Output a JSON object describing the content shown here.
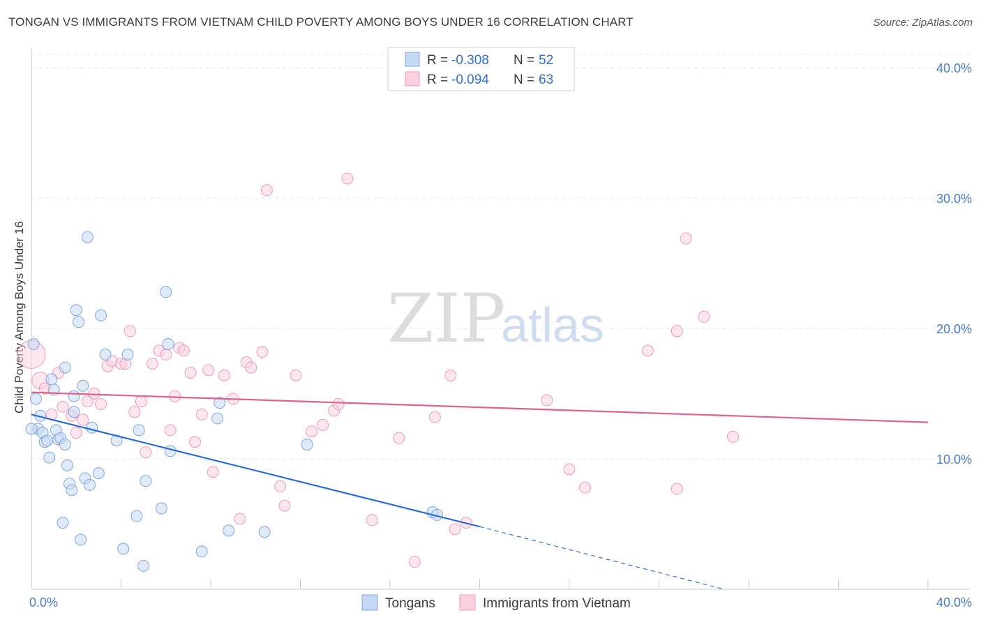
{
  "title": "TONGAN VS IMMIGRANTS FROM VIETNAM CHILD POVERTY AMONG BOYS UNDER 16 CORRELATION CHART",
  "source": "Source: ZipAtlas.com",
  "watermark": {
    "part1": "ZIP",
    "part2": "atlas"
  },
  "colors": {
    "tongans": "#6f9fe0",
    "tongans_line": "#2d6fd0",
    "vietnam": "#f09ab5",
    "vietnam_line": "#e0628e"
  },
  "legend": {
    "r_label": "R = ",
    "n_label": "N = ",
    "tongans": {
      "r": "-0.308",
      "n": "52"
    },
    "vietnam": {
      "r": "-0.094",
      "n": "63"
    }
  },
  "chart_data": {
    "type": "scatter",
    "title": "TONGAN VS IMMIGRANTS FROM VIETNAM CHILD POVERTY AMONG BOYS UNDER 16 CORRELATION CHART",
    "xlabel": "",
    "ylabel": "Child Poverty Among Boys Under 16",
    "xlim": [
      0,
      40
    ],
    "ylim": [
      0,
      40
    ],
    "y_ticks": [
      {
        "value": 10,
        "label": "10.0%"
      },
      {
        "value": 20,
        "label": "20.0%"
      },
      {
        "value": 30,
        "label": "30.0%"
      },
      {
        "value": 40,
        "label": "40.0%"
      }
    ],
    "x_tick_labels": {
      "min": "0.0%",
      "max": "40.0%"
    },
    "series": [
      {
        "name": "Tongans",
        "r": -0.308,
        "n": 52,
        "trend": {
          "x0": 0,
          "y0": 13.4,
          "x1": 20,
          "y1": 4.8,
          "dash_x1": 30.9,
          "dash_y1": 0
        },
        "points": [
          [
            0.1,
            18.8
          ],
          [
            0.2,
            14.6
          ],
          [
            0.3,
            12.3
          ],
          [
            0.4,
            13.3
          ],
          [
            0.5,
            12.0
          ],
          [
            0.6,
            11.3
          ],
          [
            0.7,
            11.4
          ],
          [
            0.8,
            10.1
          ],
          [
            0.9,
            16.1
          ],
          [
            1.0,
            15.3
          ],
          [
            1.1,
            12.2
          ],
          [
            1.2,
            11.5
          ],
          [
            1.3,
            11.6
          ],
          [
            1.4,
            5.1
          ],
          [
            1.5,
            11.1
          ],
          [
            1.5,
            17.0
          ],
          [
            1.6,
            9.5
          ],
          [
            1.7,
            8.1
          ],
          [
            1.8,
            7.6
          ],
          [
            1.9,
            13.6
          ],
          [
            1.9,
            14.8
          ],
          [
            2.0,
            21.4
          ],
          [
            2.1,
            20.5
          ],
          [
            2.2,
            3.8
          ],
          [
            2.3,
            15.6
          ],
          [
            2.4,
            8.5
          ],
          [
            2.5,
            27.0
          ],
          [
            2.6,
            8.0
          ],
          [
            2.7,
            12.4
          ],
          [
            3.0,
            8.9
          ],
          [
            3.1,
            21.0
          ],
          [
            3.3,
            18.0
          ],
          [
            3.8,
            11.4
          ],
          [
            4.1,
            3.1
          ],
          [
            4.3,
            18.0
          ],
          [
            4.7,
            5.6
          ],
          [
            4.8,
            12.2
          ],
          [
            5.0,
            1.8
          ],
          [
            5.1,
            8.3
          ],
          [
            5.8,
            6.2
          ],
          [
            6.0,
            22.8
          ],
          [
            6.1,
            18.8
          ],
          [
            6.2,
            10.6
          ],
          [
            7.6,
            2.9
          ],
          [
            8.3,
            13.1
          ],
          [
            8.4,
            14.3
          ],
          [
            8.8,
            4.5
          ],
          [
            10.4,
            4.4
          ],
          [
            12.3,
            11.1
          ],
          [
            17.9,
            5.9
          ],
          [
            18.1,
            5.7
          ],
          [
            0.0,
            12.3
          ]
        ]
      },
      {
        "name": "Immigrants from Vietnam",
        "r": -0.094,
        "n": 63,
        "trend": {
          "x0": 0,
          "y0": 15.1,
          "x1": 40,
          "y1": 12.8
        },
        "points": [
          [
            0.0,
            18.0
          ],
          [
            0.4,
            16.0
          ],
          [
            0.6,
            15.4
          ],
          [
            0.9,
            13.4
          ],
          [
            1.2,
            16.6
          ],
          [
            1.4,
            14.0
          ],
          [
            1.8,
            13.3
          ],
          [
            2.0,
            12.0
          ],
          [
            2.3,
            13.0
          ],
          [
            2.5,
            14.4
          ],
          [
            2.8,
            15.0
          ],
          [
            3.1,
            14.2
          ],
          [
            3.4,
            17.1
          ],
          [
            3.6,
            17.5
          ],
          [
            4.0,
            17.3
          ],
          [
            4.2,
            17.3
          ],
          [
            4.4,
            19.8
          ],
          [
            4.6,
            13.6
          ],
          [
            4.9,
            14.4
          ],
          [
            5.1,
            10.5
          ],
          [
            5.4,
            17.3
          ],
          [
            5.7,
            18.3
          ],
          [
            6.0,
            18.0
          ],
          [
            6.2,
            12.2
          ],
          [
            6.4,
            14.8
          ],
          [
            6.6,
            18.5
          ],
          [
            6.8,
            18.3
          ],
          [
            7.1,
            16.6
          ],
          [
            7.3,
            11.3
          ],
          [
            7.6,
            13.4
          ],
          [
            7.9,
            16.8
          ],
          [
            8.1,
            9.0
          ],
          [
            8.6,
            16.4
          ],
          [
            9.0,
            14.6
          ],
          [
            9.3,
            5.4
          ],
          [
            9.6,
            17.4
          ],
          [
            9.8,
            17.0
          ],
          [
            10.3,
            18.2
          ],
          [
            10.5,
            30.6
          ],
          [
            11.1,
            7.9
          ],
          [
            11.3,
            6.4
          ],
          [
            11.8,
            16.4
          ],
          [
            12.5,
            12.1
          ],
          [
            13.0,
            12.6
          ],
          [
            13.5,
            13.7
          ],
          [
            13.7,
            14.2
          ],
          [
            14.1,
            31.5
          ],
          [
            15.2,
            5.3
          ],
          [
            16.4,
            11.6
          ],
          [
            17.1,
            2.1
          ],
          [
            18.0,
            13.2
          ],
          [
            18.7,
            16.4
          ],
          [
            18.9,
            4.6
          ],
          [
            19.4,
            5.1
          ],
          [
            23.0,
            14.5
          ],
          [
            24.0,
            9.2
          ],
          [
            24.7,
            7.8
          ],
          [
            27.5,
            18.3
          ],
          [
            28.8,
            19.8
          ],
          [
            28.8,
            7.7
          ],
          [
            29.2,
            26.9
          ],
          [
            30.0,
            20.9
          ],
          [
            31.3,
            11.7
          ]
        ]
      }
    ],
    "legend_position": "top-center",
    "grid": true
  }
}
